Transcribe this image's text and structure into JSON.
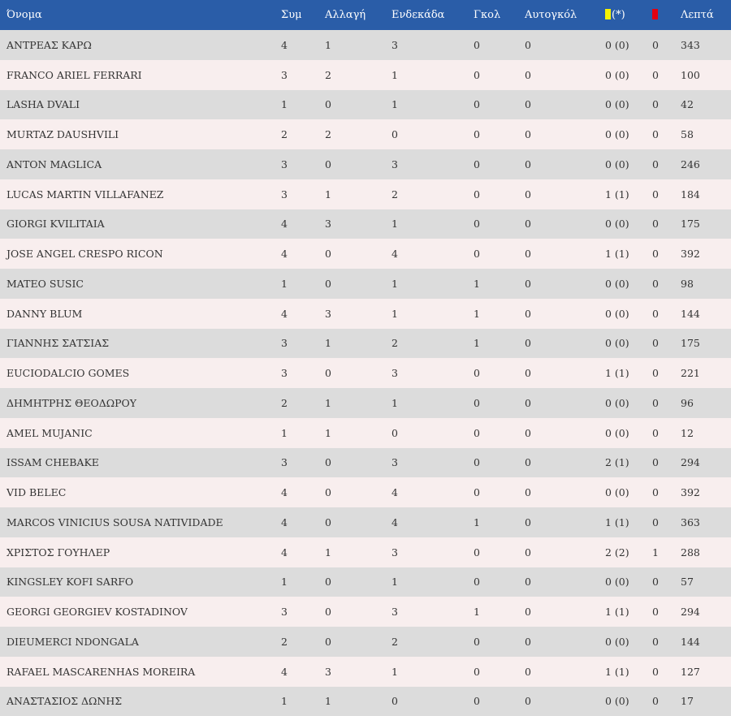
{
  "colors": {
    "header_bg": "#2a5da8",
    "row_odd": "#dcdcdc",
    "row_even": "#f8eeee",
    "yellow_card": "#f6f200",
    "red_card": "#e3000f"
  },
  "header": {
    "name": "Όνομα",
    "apps": "Συμ",
    "subs": "Αλλαγή",
    "starts": "Ενδεκάδα",
    "goals": "Γκολ",
    "own_goals": "Αυτογκόλ",
    "yellow_suffix": "(*)",
    "minutes": "Λεπτά"
  },
  "rows": [
    {
      "name": "ΑΝΤΡΕΑΣ ΚΑΡΩ",
      "apps": "4",
      "subs": "1",
      "starts": "3",
      "goals": "0",
      "own_goals": "0",
      "yellow": "0 (0)",
      "red": "0",
      "minutes": "343"
    },
    {
      "name": "FRANCO ARIEL FERRARI",
      "apps": "3",
      "subs": "2",
      "starts": "1",
      "goals": "0",
      "own_goals": "0",
      "yellow": "0 (0)",
      "red": "0",
      "minutes": "100"
    },
    {
      "name": "LASHA DVALI",
      "apps": "1",
      "subs": "0",
      "starts": "1",
      "goals": "0",
      "own_goals": "0",
      "yellow": "0 (0)",
      "red": "0",
      "minutes": "42"
    },
    {
      "name": "MURTAZ DAUSHVILI",
      "apps": "2",
      "subs": "2",
      "starts": "0",
      "goals": "0",
      "own_goals": "0",
      "yellow": "0 (0)",
      "red": "0",
      "minutes": "58"
    },
    {
      "name": "ANTON MAGLICA",
      "apps": "3",
      "subs": "0",
      "starts": "3",
      "goals": "0",
      "own_goals": "0",
      "yellow": "0 (0)",
      "red": "0",
      "minutes": "246"
    },
    {
      "name": "LUCAS MARTIN VILLAFANEZ",
      "apps": "3",
      "subs": "1",
      "starts": "2",
      "goals": "0",
      "own_goals": "0",
      "yellow": "1 (1)",
      "red": "0",
      "minutes": "184"
    },
    {
      "name": "GIORGI KVILITAIA",
      "apps": "4",
      "subs": "3",
      "starts": "1",
      "goals": "0",
      "own_goals": "0",
      "yellow": "0 (0)",
      "red": "0",
      "minutes": "175"
    },
    {
      "name": "JOSE ANGEL CRESPO RICON",
      "apps": "4",
      "subs": "0",
      "starts": "4",
      "goals": "0",
      "own_goals": "0",
      "yellow": "1 (1)",
      "red": "0",
      "minutes": "392"
    },
    {
      "name": "MATEO SUSIC",
      "apps": "1",
      "subs": "0",
      "starts": "1",
      "goals": "1",
      "own_goals": "0",
      "yellow": "0 (0)",
      "red": "0",
      "minutes": "98"
    },
    {
      "name": "DANNY BLUM",
      "apps": "4",
      "subs": "3",
      "starts": "1",
      "goals": "1",
      "own_goals": "0",
      "yellow": "0 (0)",
      "red": "0",
      "minutes": "144"
    },
    {
      "name": "ΓΙΑΝΝΗΣ ΣΑΤΣΙΑΣ",
      "apps": "3",
      "subs": "1",
      "starts": "2",
      "goals": "1",
      "own_goals": "0",
      "yellow": "0 (0)",
      "red": "0",
      "minutes": "175"
    },
    {
      "name": "EUCIODALCIO GOMES",
      "apps": "3",
      "subs": "0",
      "starts": "3",
      "goals": "0",
      "own_goals": "0",
      "yellow": "1 (1)",
      "red": "0",
      "minutes": "221"
    },
    {
      "name": "ΔΗΜΗΤΡΗΣ ΘΕΟΔΩΡΟΥ",
      "apps": "2",
      "subs": "1",
      "starts": "1",
      "goals": "0",
      "own_goals": "0",
      "yellow": "0 (0)",
      "red": "0",
      "minutes": "96"
    },
    {
      "name": "AMEL MUJANIC",
      "apps": "1",
      "subs": "1",
      "starts": "0",
      "goals": "0",
      "own_goals": "0",
      "yellow": "0 (0)",
      "red": "0",
      "minutes": "12"
    },
    {
      "name": "ISSAM CHEBAKE",
      "apps": "3",
      "subs": "0",
      "starts": "3",
      "goals": "0",
      "own_goals": "0",
      "yellow": "2 (1)",
      "red": "0",
      "minutes": "294"
    },
    {
      "name": "VID BELEC",
      "apps": "4",
      "subs": "0",
      "starts": "4",
      "goals": "0",
      "own_goals": "0",
      "yellow": "0 (0)",
      "red": "0",
      "minutes": "392"
    },
    {
      "name": "MARCOS VINICIUS SOUSA NATIVIDADE",
      "apps": "4",
      "subs": "0",
      "starts": "4",
      "goals": "1",
      "own_goals": "0",
      "yellow": "1 (1)",
      "red": "0",
      "minutes": "363"
    },
    {
      "name": "ΧΡΙΣΤΟΣ ΓΟΥΗΛΕΡ",
      "apps": "4",
      "subs": "1",
      "starts": "3",
      "goals": "0",
      "own_goals": "0",
      "yellow": "2 (2)",
      "red": "1",
      "minutes": "288"
    },
    {
      "name": "KINGSLEY KOFI SARFO",
      "apps": "1",
      "subs": "0",
      "starts": "1",
      "goals": "0",
      "own_goals": "0",
      "yellow": "0 (0)",
      "red": "0",
      "minutes": "57"
    },
    {
      "name": "GEORGI GEORGIEV KOSTADINOV",
      "apps": "3",
      "subs": "0",
      "starts": "3",
      "goals": "1",
      "own_goals": "0",
      "yellow": "1 (1)",
      "red": "0",
      "minutes": "294"
    },
    {
      "name": "DIEUMERCI NDONGALA",
      "apps": "2",
      "subs": "0",
      "starts": "2",
      "goals": "0",
      "own_goals": "0",
      "yellow": "0 (0)",
      "red": "0",
      "minutes": "144"
    },
    {
      "name": "RAFAEL MASCARENHAS MOREIRA",
      "apps": "4",
      "subs": "3",
      "starts": "1",
      "goals": "0",
      "own_goals": "0",
      "yellow": "1 (1)",
      "red": "0",
      "minutes": "127"
    },
    {
      "name": "ΑΝΑΣΤΑΣΙΟΣ ΔΩΝΗΣ",
      "apps": "1",
      "subs": "1",
      "starts": "0",
      "goals": "0",
      "own_goals": "0",
      "yellow": "0 (0)",
      "red": "0",
      "minutes": "17"
    }
  ]
}
